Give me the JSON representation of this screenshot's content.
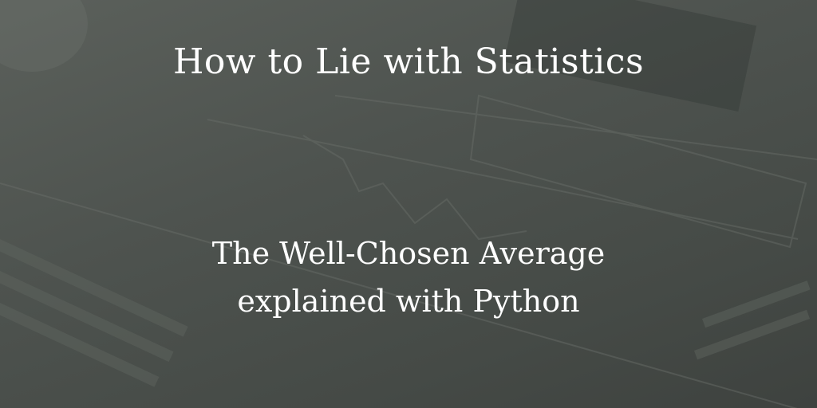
{
  "header": {
    "title": "How to Lie with Statistics"
  },
  "subtitle": {
    "lines": [
      "The Well-Chosen Average",
      "explained with Python"
    ]
  }
}
